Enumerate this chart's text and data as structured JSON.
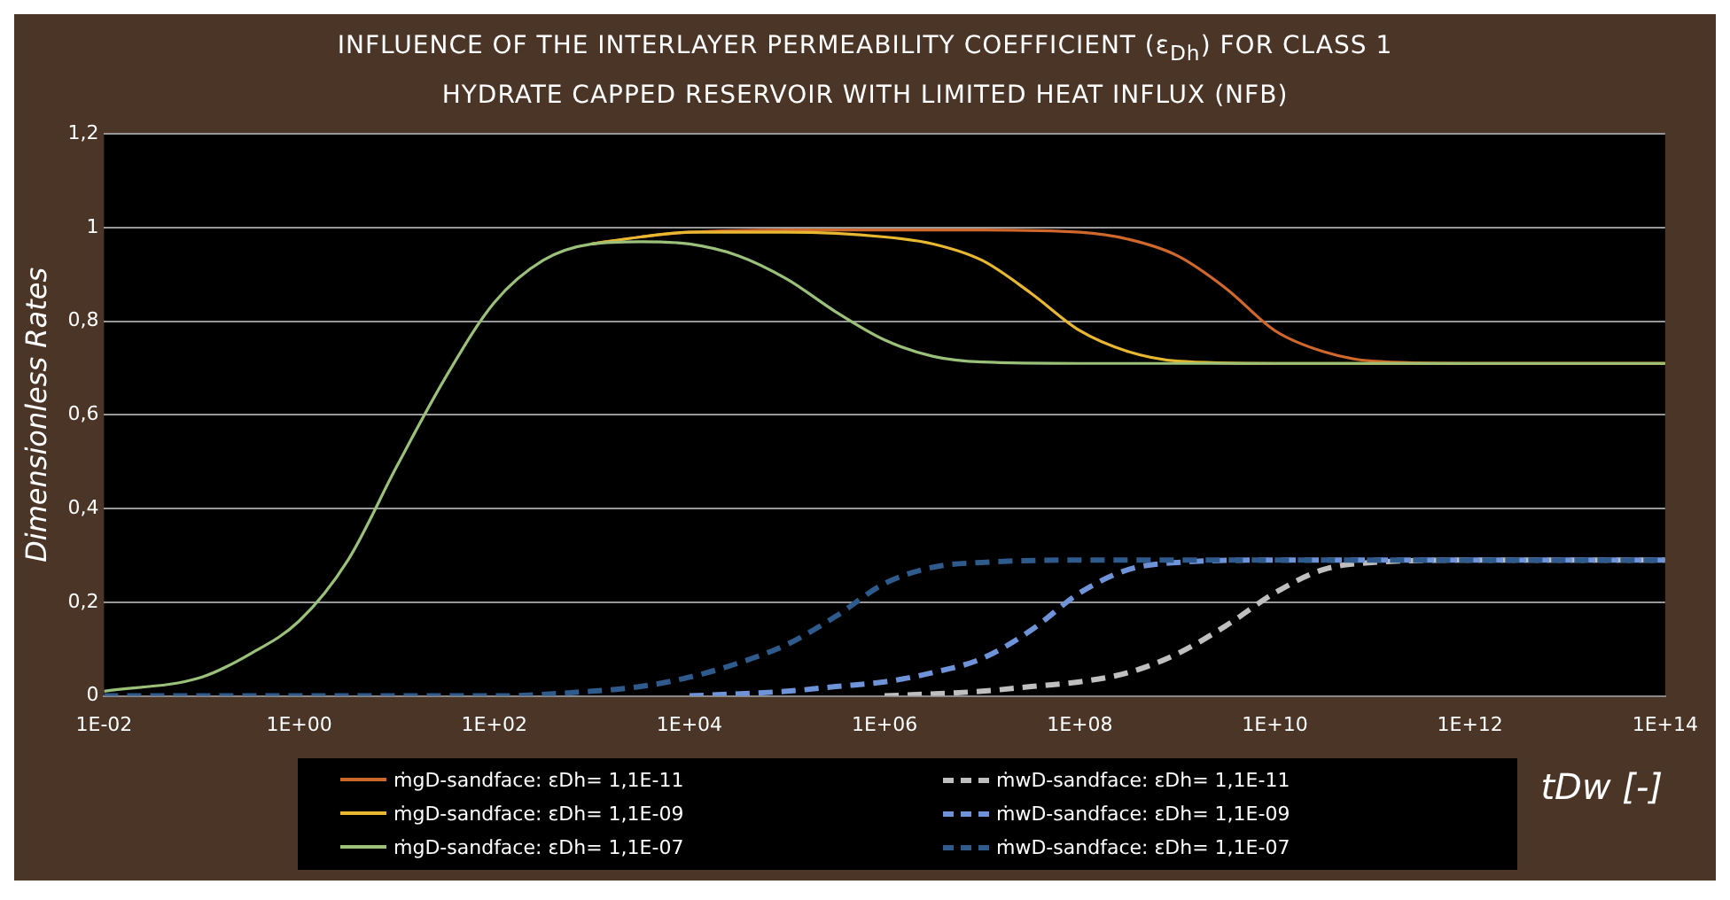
{
  "chart_data": {
    "type": "line",
    "title": "INFLUENCE OF THE INTERLAYER PERMEABILITY COEFFICIENT (ε$_{Dh}$) FOR CLASS 1\nHYDRATE CAPPED RESERVOIR WITH LIMITED HEAT INFLUX (NFB)",
    "xlabel": "tDw [-]",
    "ylabel": "Dimensionless Rates",
    "log": "x",
    "grid": "y",
    "legend": "bottom",
    "line_style": "solid",
    "marker": "none",
    "xlim": [
      0.01,
      100000000000000.0
    ],
    "xticks": [
      {
        "value": 0.01,
        "label": "1E-02"
      },
      {
        "value": 1,
        "label": "1E+00"
      },
      {
        "value": 100,
        "label": "1E+02"
      },
      {
        "value": 10000,
        "label": "1E+04"
      },
      {
        "value": 1000000.0,
        "label": "1E+06"
      },
      {
        "value": 100000000.0,
        "label": "1E+08"
      },
      {
        "value": 10000000000.0,
        "label": "1E+10"
      },
      {
        "value": 1000000000000.0,
        "label": "1E+12"
      },
      {
        "value": 100000000000000.0,
        "label": "1E+14"
      }
    ],
    "ylim": [
      0,
      1.2
    ],
    "yticks": [
      0,
      {
        "value": 0.2,
        "label": "0,2"
      },
      {
        "value": 0.4,
        "label": "0,4"
      },
      {
        "value": 0.6,
        "label": "0,6"
      },
      {
        "value": 0.8,
        "label": "0,8"
      },
      1,
      {
        "value": 1.2,
        "label": "1,2"
      }
    ],
    "series": [
      {
        "name": "ṁgD-sandface: εDh= 1,1E-11",
        "color": "#d0682c",
        "x": [
          1000,
          3162,
          10000,
          100000.0,
          1000000.0,
          10000000.0,
          100000000.0,
          316200000.0,
          1000000000.0,
          3162000000.0,
          10000000000.0,
          31620000000.0,
          100000000000.0,
          1000000000000.0,
          100000000000000.0
        ],
        "values": [
          0.965,
          0.98,
          0.99,
          0.995,
          0.995,
          0.995,
          0.99,
          0.975,
          0.94,
          0.87,
          0.78,
          0.735,
          0.715,
          0.71,
          0.71
        ]
      },
      {
        "name": "ṁwD-sandface: εDh= 1,1E-11",
        "color": "#bfbfbf",
        "line_style": "dashed",
        "x": [
          1000000.0,
          10000000.0,
          31620000.0,
          100000000.0,
          316200000.0,
          1000000000.0,
          3162000000.0,
          10000000000.0,
          31620000000.0,
          100000000000.0,
          1000000000000.0,
          100000000000000.0
        ],
        "values": [
          0,
          0.01,
          0.02,
          0.03,
          0.05,
          0.09,
          0.15,
          0.22,
          0.27,
          0.285,
          0.29,
          0.29
        ]
      },
      {
        "name": "ṁgD-sandface: εDh= 1,1E-09",
        "color": "#e8b830",
        "x": [
          1000,
          3162,
          10000,
          100000.0,
          1000000.0,
          3162000.0,
          10000000.0,
          31620000.0,
          100000000.0,
          316200000.0,
          1000000000.0,
          10000000000.0,
          100000000000000.0
        ],
        "values": [
          0.965,
          0.98,
          0.99,
          0.99,
          0.98,
          0.965,
          0.93,
          0.86,
          0.78,
          0.735,
          0.715,
          0.71,
          0.71
        ]
      },
      {
        "name": "ṁwD-sandface: εDh= 1,1E-09",
        "color": "#6f93d8",
        "line_style": "dashed",
        "x": [
          10000,
          100000.0,
          316228,
          1000000.0,
          3162000.0,
          10000000.0,
          31620000.0,
          100000000.0,
          316200000.0,
          1000000000.0,
          10000000000.0,
          100000000000000.0
        ],
        "values": [
          0,
          0.01,
          0.02,
          0.03,
          0.05,
          0.08,
          0.14,
          0.22,
          0.27,
          0.285,
          0.29,
          0.29
        ]
      },
      {
        "name": "ṁgD-sandface: εDh= 1,1E-07",
        "color": "#9ac07a",
        "x": [
          0.01,
          0.1,
          0.3162,
          1,
          3.162,
          10,
          31.62,
          100,
          316.2,
          1000,
          3162,
          10000,
          31623,
          100000.0,
          316228,
          1000000.0,
          3162000.0,
          10000000.0,
          100000000.0,
          100000000000000.0
        ],
        "values": [
          0.01,
          0.04,
          0.09,
          0.16,
          0.29,
          0.49,
          0.68,
          0.84,
          0.93,
          0.965,
          0.97,
          0.965,
          0.94,
          0.89,
          0.82,
          0.76,
          0.725,
          0.713,
          0.71,
          0.71
        ]
      },
      {
        "name": "ṁwD-sandface: εDh= 1,1E-07",
        "color": "#2f5a8c",
        "line_style": "dashed",
        "x": [
          0.01,
          100,
          1000,
          3162,
          10000,
          31623,
          100000.0,
          316228,
          1000000.0,
          3162000.0,
          10000000.0,
          100000000.0,
          100000000000000.0
        ],
        "values": [
          0,
          0,
          0.01,
          0.02,
          0.04,
          0.07,
          0.11,
          0.17,
          0.24,
          0.275,
          0.285,
          0.29,
          0.29
        ]
      }
    ]
  }
}
